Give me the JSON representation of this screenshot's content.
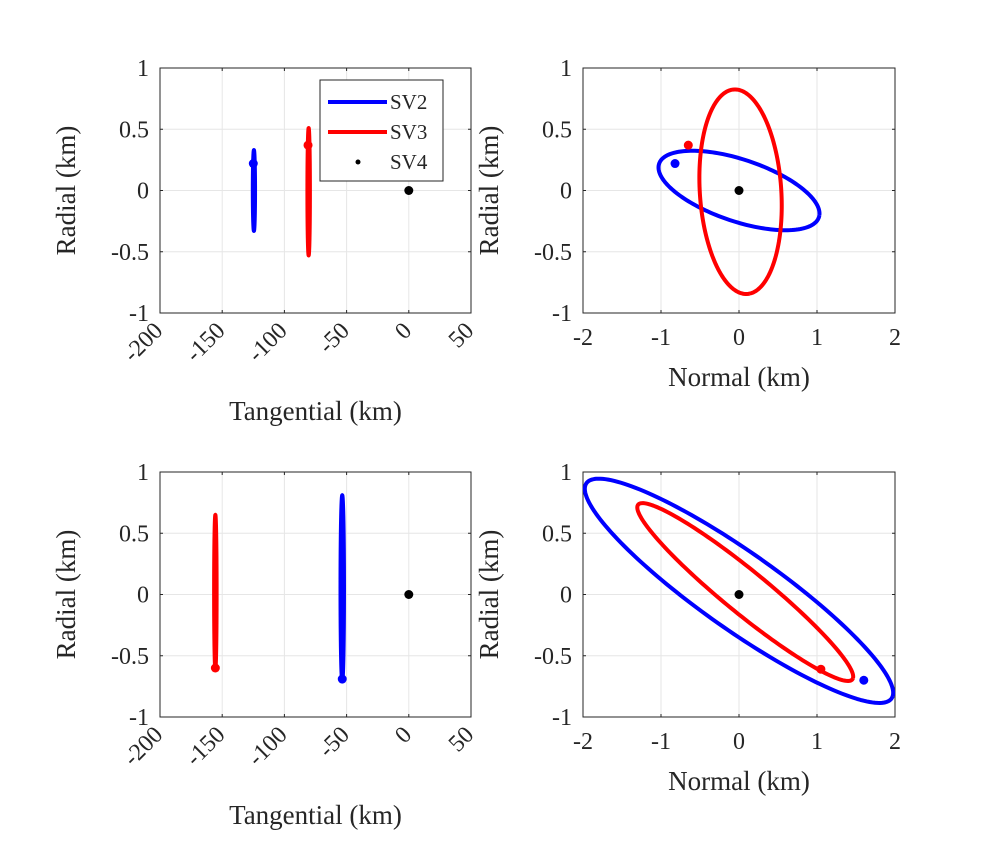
{
  "colors": {
    "SV2": "#0000ff",
    "SV3": "#ff0000",
    "SV4": "#000000",
    "grid": "#e6e6e6",
    "axis": "#262626"
  },
  "legend": [
    {
      "name": "SV2",
      "style": "line",
      "color": "#0000ff"
    },
    {
      "name": "SV3",
      "style": "line",
      "color": "#ff0000"
    },
    {
      "name": "SV4",
      "style": "dot",
      "color": "#000000"
    }
  ],
  "chart_data": [
    {
      "type": "line",
      "id": "top-left",
      "xlabel": "Tangential (km)",
      "ylabel": "Radial (km)",
      "xlim": [
        -200,
        50
      ],
      "ylim": [
        -1,
        1
      ],
      "xticks": [
        -200,
        -150,
        -100,
        -50,
        0,
        50
      ],
      "xtick_labels": [
        "-200",
        "-150",
        "-100",
        "-50",
        "0",
        "50"
      ],
      "xtick_rotation": 45,
      "yticks": [
        -1,
        -0.5,
        0,
        0.5,
        1
      ],
      "ytick_labels": [
        "-1",
        "-0.5",
        "0",
        "0.5",
        "1"
      ],
      "grid": true,
      "legend": "top-right",
      "series": [
        {
          "name": "SV2",
          "kind": "ellipse",
          "center": [
            -124.5,
            0
          ],
          "semi_x": 0.9,
          "semi_y": 0.33,
          "marker": [
            -125,
            0.22
          ]
        },
        {
          "name": "SV3",
          "kind": "ellipse",
          "center": [
            -80.5,
            -0.01
          ],
          "semi_x": 1.0,
          "semi_y": 0.52,
          "marker": [
            -81,
            0.37
          ]
        },
        {
          "name": "SV4",
          "kind": "point",
          "marker": [
            0,
            0
          ]
        }
      ]
    },
    {
      "type": "line",
      "id": "top-right",
      "xlabel": "Normal (km)",
      "ylabel": "Radial (km)",
      "xlim": [
        -2,
        2
      ],
      "ylim": [
        -1,
        1
      ],
      "xticks": [
        -2,
        -1,
        0,
        1,
        2
      ],
      "xtick_labels": [
        "-2",
        "-1",
        "0",
        "1",
        "2"
      ],
      "xtick_rotation": 0,
      "yticks": [
        -1,
        -0.5,
        0,
        0.5,
        1
      ],
      "ytick_labels": [
        "-1",
        "-0.5",
        "0",
        "0.5",
        "1"
      ],
      "grid": true,
      "legend": "none",
      "series": [
        {
          "name": "SV2",
          "kind": "ellipse",
          "center": [
            0,
            0
          ],
          "semi_x": 1.05,
          "semi_y": 0.26,
          "angle_deg": -11,
          "marker": [
            -0.82,
            0.22
          ]
        },
        {
          "name": "SV3",
          "kind": "ellipse",
          "center": [
            0.02,
            -0.01
          ],
          "semi_x": 0.84,
          "semi_y": 0.52,
          "angle_deg": -82,
          "marker": [
            -0.65,
            0.37
          ]
        },
        {
          "name": "SV4",
          "kind": "point",
          "marker": [
            0,
            0
          ]
        }
      ]
    },
    {
      "type": "line",
      "id": "bottom-left",
      "xlabel": "Tangential (km)",
      "ylabel": "Radial (km)",
      "xlim": [
        -200,
        50
      ],
      "ylim": [
        -1,
        1
      ],
      "xticks": [
        -200,
        -150,
        -100,
        -50,
        0,
        50
      ],
      "xtick_labels": [
        "-200",
        "-150",
        "-100",
        "-50",
        "0",
        "50"
      ],
      "xtick_rotation": 45,
      "yticks": [
        -1,
        -0.5,
        0,
        0.5,
        1
      ],
      "ytick_labels": [
        "-1",
        "-0.5",
        "0",
        "0.5",
        "1"
      ],
      "grid": true,
      "legend": "none",
      "series": [
        {
          "name": "SV2",
          "kind": "ellipse",
          "center": [
            -53.5,
            0.05
          ],
          "semi_x": 1.4,
          "semi_y": 0.76,
          "marker": [
            -53.5,
            -0.69
          ]
        },
        {
          "name": "SV3",
          "kind": "ellipse",
          "center": [
            -155.5,
            0.02
          ],
          "semi_x": 1.0,
          "semi_y": 0.63,
          "marker": [
            -155.5,
            -0.6
          ]
        },
        {
          "name": "SV4",
          "kind": "point",
          "marker": [
            0,
            0
          ]
        }
      ]
    },
    {
      "type": "line",
      "id": "bottom-right",
      "xlabel": "Normal (km)",
      "ylabel": "Radial (km)",
      "xlim": [
        -2,
        2
      ],
      "ylim": [
        -1,
        1
      ],
      "xticks": [
        -2,
        -1,
        0,
        1,
        2
      ],
      "xtick_labels": [
        "-2",
        "-1",
        "0",
        "1",
        "2"
      ],
      "xtick_rotation": 0,
      "yticks": [
        -1,
        -0.5,
        0,
        0.5,
        1
      ],
      "ytick_labels": [
        "-1",
        "-0.5",
        "0",
        "0.5",
        "1"
      ],
      "grid": true,
      "legend": "none",
      "series": [
        {
          "name": "SV2",
          "kind": "ellipse",
          "center": [
            0,
            0.03
          ],
          "semi_x": 2.15,
          "semi_y": 0.35,
          "angle_deg": -23.5,
          "marker": [
            1.6,
            -0.7
          ]
        },
        {
          "name": "SV3",
          "kind": "ellipse",
          "center": [
            0.08,
            0.02
          ],
          "semi_x": 1.55,
          "semi_y": 0.2,
          "angle_deg": -27,
          "marker": [
            1.05,
            -0.61
          ]
        },
        {
          "name": "SV4",
          "kind": "point",
          "marker": [
            0,
            0
          ]
        }
      ]
    }
  ]
}
